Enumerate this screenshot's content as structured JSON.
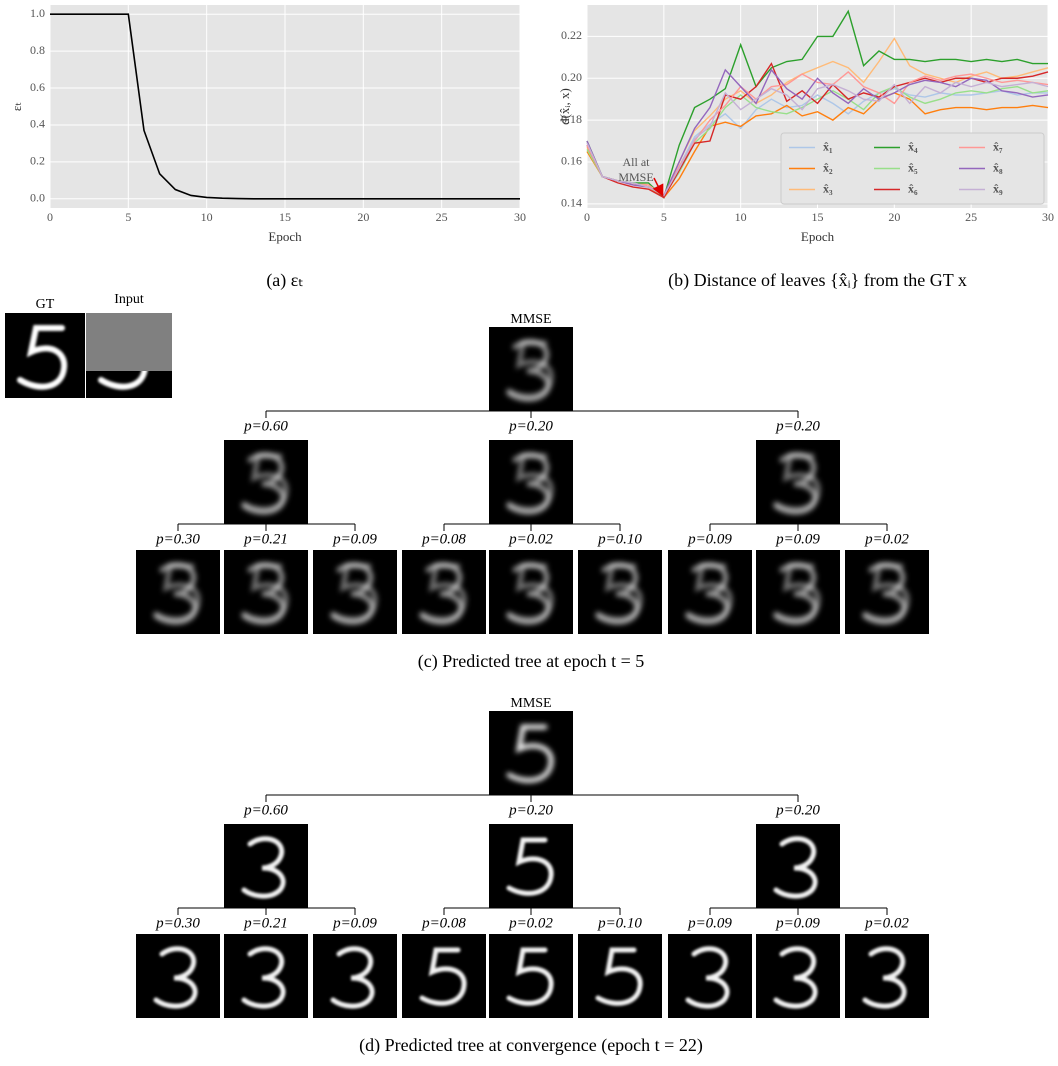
{
  "chart_data": [
    {
      "type": "line",
      "caption": "(a) εₜ",
      "xlabel": "Epoch",
      "ylabel": "εₜ",
      "x": [
        0,
        1,
        2,
        3,
        4,
        5,
        6,
        7,
        8,
        9,
        10,
        11,
        12,
        13,
        14,
        15,
        16,
        17,
        18,
        19,
        20,
        21,
        22,
        23,
        24,
        25,
        26,
        27,
        28,
        29,
        30
      ],
      "values": [
        1.0,
        1.0,
        1.0,
        1.0,
        1.0,
        1.0,
        0.37,
        0.135,
        0.05,
        0.018,
        0.007,
        0.003,
        0.001,
        0.0,
        0.0,
        0.0,
        0.0,
        0.0,
        0.0,
        0.0,
        0.0,
        0.0,
        0.0,
        0.0,
        0.0,
        0.0,
        0.0,
        0.0,
        0.0,
        0.0,
        0.0
      ],
      "color": "#000000",
      "xlim": [
        0,
        30
      ],
      "ylim": [
        -0.05,
        1.05
      ],
      "xticks": [
        0,
        5,
        10,
        15,
        20,
        25,
        30
      ],
      "yticks": [
        {
          "value": 0,
          "label": "0.0"
        },
        0.2,
        0.4,
        0.6,
        0.8,
        {
          "value": 1,
          "label": "1.0"
        }
      ],
      "grid": true
    },
    {
      "type": "line",
      "caption": "(b) Distance of leaves {x̂ᵢ} from the GT x",
      "xlabel": "Epoch",
      "ylabel": "d(x̂ᵢ, x)",
      "annotation": [
        "All at",
        "MMSE"
      ],
      "legend": "lower right",
      "x": [
        0,
        1,
        2,
        3,
        4,
        5,
        6,
        7,
        8,
        9,
        10,
        11,
        12,
        13,
        14,
        15,
        16,
        17,
        18,
        19,
        20,
        21,
        22,
        23,
        24,
        25,
        26,
        27,
        28,
        29,
        30
      ],
      "series": [
        {
          "name": "x̂₁",
          "color": "#aec7e8",
          "values": [
            0.168,
            0.153,
            0.151,
            0.15,
            0.148,
            0.144,
            0.158,
            0.172,
            0.178,
            0.183,
            0.176,
            0.185,
            0.19,
            0.186,
            0.187,
            0.192,
            0.188,
            0.183,
            0.189,
            0.193,
            0.195,
            0.192,
            0.191,
            0.193,
            0.192,
            0.192,
            0.193,
            0.194,
            0.192,
            0.193,
            0.193
          ]
        },
        {
          "name": "x̂₂",
          "color": "#ff7f0e",
          "values": [
            0.165,
            0.153,
            0.151,
            0.15,
            0.148,
            0.143,
            0.152,
            0.165,
            0.177,
            0.179,
            0.177,
            0.182,
            0.183,
            0.187,
            0.182,
            0.184,
            0.18,
            0.186,
            0.183,
            0.19,
            0.193,
            0.19,
            0.183,
            0.185,
            0.186,
            0.186,
            0.185,
            0.186,
            0.186,
            0.187,
            0.186
          ]
        },
        {
          "name": "x̂₃",
          "color": "#ffbb78",
          "values": [
            0.167,
            0.153,
            0.151,
            0.15,
            0.149,
            0.144,
            0.16,
            0.175,
            0.182,
            0.19,
            0.194,
            0.188,
            0.192,
            0.198,
            0.202,
            0.205,
            0.208,
            0.205,
            0.198,
            0.208,
            0.219,
            0.206,
            0.202,
            0.2,
            0.198,
            0.201,
            0.203,
            0.2,
            0.201,
            0.203,
            0.205
          ]
        },
        {
          "name": "x̂₄",
          "color": "#2ca02c",
          "values": [
            0.17,
            0.153,
            0.151,
            0.15,
            0.15,
            0.143,
            0.168,
            0.186,
            0.19,
            0.195,
            0.216,
            0.196,
            0.205,
            0.208,
            0.209,
            0.22,
            0.22,
            0.232,
            0.206,
            0.213,
            0.209,
            0.209,
            0.208,
            0.209,
            0.209,
            0.208,
            0.209,
            0.208,
            0.209,
            0.207,
            0.207
          ]
        },
        {
          "name": "x̂₅",
          "color": "#98df8a",
          "values": [
            0.166,
            0.153,
            0.151,
            0.15,
            0.148,
            0.144,
            0.155,
            0.169,
            0.176,
            0.186,
            0.192,
            0.186,
            0.184,
            0.183,
            0.186,
            0.19,
            0.194,
            0.19,
            0.185,
            0.193,
            0.196,
            0.191,
            0.188,
            0.19,
            0.193,
            0.194,
            0.193,
            0.195,
            0.196,
            0.193,
            0.194
          ]
        },
        {
          "name": "x̂₆",
          "color": "#d62728",
          "values": [
            0.168,
            0.153,
            0.15,
            0.148,
            0.147,
            0.143,
            0.156,
            0.169,
            0.17,
            0.192,
            0.19,
            0.196,
            0.207,
            0.189,
            0.194,
            0.188,
            0.197,
            0.19,
            0.193,
            0.191,
            0.196,
            0.198,
            0.2,
            0.198,
            0.2,
            0.2,
            0.198,
            0.2,
            0.2,
            0.201,
            0.203
          ]
        },
        {
          "name": "x̂₇",
          "color": "#ff9896",
          "values": [
            0.168,
            0.153,
            0.151,
            0.149,
            0.149,
            0.144,
            0.158,
            0.17,
            0.18,
            0.187,
            0.196,
            0.19,
            0.196,
            0.197,
            0.202,
            0.198,
            0.197,
            0.203,
            0.196,
            0.193,
            0.188,
            0.198,
            0.201,
            0.199,
            0.201,
            0.202,
            0.2,
            0.198,
            0.199,
            0.198,
            0.197
          ]
        },
        {
          "name": "x̂₈",
          "color": "#9467bd",
          "values": [
            0.17,
            0.153,
            0.151,
            0.149,
            0.148,
            0.144,
            0.16,
            0.176,
            0.186,
            0.204,
            0.196,
            0.188,
            0.204,
            0.195,
            0.19,
            0.2,
            0.193,
            0.188,
            0.195,
            0.19,
            0.193,
            0.197,
            0.199,
            0.198,
            0.196,
            0.2,
            0.199,
            0.194,
            0.193,
            0.191,
            0.192
          ]
        },
        {
          "name": "x̂₉",
          "color": "#c5b0d5",
          "values": [
            0.169,
            0.153,
            0.151,
            0.15,
            0.148,
            0.144,
            0.157,
            0.171,
            0.177,
            0.193,
            0.185,
            0.19,
            0.195,
            0.192,
            0.185,
            0.195,
            0.197,
            0.194,
            0.19,
            0.189,
            0.197,
            0.188,
            0.196,
            0.193,
            0.198,
            0.196,
            0.198,
            0.196,
            0.197,
            0.198,
            0.196
          ]
        }
      ],
      "xlim": [
        0,
        30
      ],
      "ylim": [
        0.138,
        0.235
      ],
      "xticks": [
        0,
        5,
        10,
        15,
        20,
        25,
        30
      ],
      "yticks": [
        0.14,
        0.16,
        0.18,
        {
          "value": 0.2,
          "label": "0.20"
        },
        0.22
      ],
      "grid": true
    }
  ],
  "gt_label": "GT",
  "input_label": "Input",
  "trees": [
    {
      "root": "MMSE",
      "level1": [
        "p=0.60",
        "p=0.20",
        "p=0.20"
      ],
      "level2": [
        "p=0.30",
        "p=0.21",
        "p=0.09",
        "p=0.08",
        "p=0.02",
        "p=0.10",
        "p=0.09",
        "p=0.09",
        "p=0.02"
      ],
      "caption": "(c) Predicted tree at epoch t = 5"
    },
    {
      "root": "MMSE",
      "level1": [
        "p=0.60",
        "p=0.20",
        "p=0.20"
      ],
      "level2": [
        "p=0.30",
        "p=0.21",
        "p=0.09",
        "p=0.08",
        "p=0.02",
        "p=0.10",
        "p=0.09",
        "p=0.09",
        "p=0.02"
      ],
      "caption": "(d) Predicted tree at convergence (epoch t = 22)"
    }
  ]
}
